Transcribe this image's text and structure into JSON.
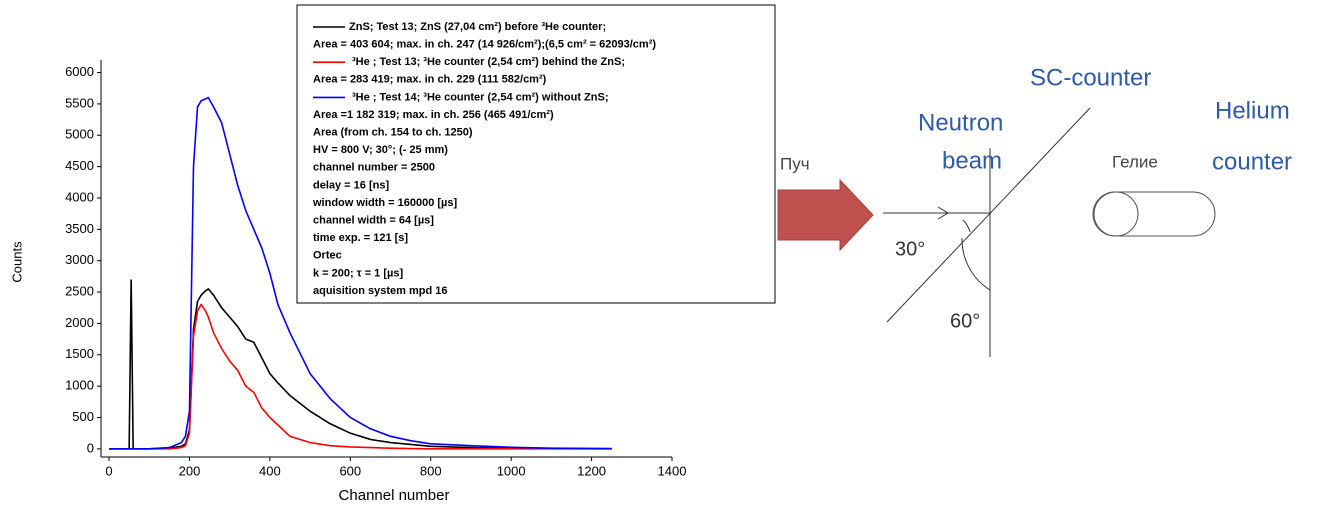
{
  "chart_data": {
    "type": "line",
    "x_label": "Channel number",
    "y_label": "Counts",
    "xlim": [
      -20,
      1400
    ],
    "ylim": [
      -130,
      6200
    ],
    "xticks": [
      0,
      200,
      400,
      600,
      800,
      1000,
      1200,
      1400
    ],
    "yticks": [
      0,
      500,
      1000,
      1500,
      2000,
      2500,
      3000,
      3500,
      4000,
      4500,
      5000,
      5500,
      6000
    ],
    "x": [
      0,
      40,
      50,
      55,
      60,
      70,
      100,
      150,
      180,
      190,
      200,
      210,
      220,
      229,
      240,
      247,
      260,
      280,
      300,
      320,
      340,
      360,
      380,
      400,
      420,
      450,
      500,
      550,
      600,
      650,
      700,
      750,
      800,
      900,
      1000,
      1100,
      1250
    ],
    "series": [
      {
        "name": "ZnS; Test 13; ZnS (27,04 cm²) before ³He counter;",
        "color": "#000000",
        "values": [
          0,
          0,
          0,
          2700,
          0,
          0,
          0,
          10,
          40,
          80,
          300,
          1900,
          2350,
          2450,
          2520,
          2550,
          2450,
          2250,
          2100,
          1950,
          1750,
          1700,
          1450,
          1200,
          1050,
          850,
          600,
          400,
          250,
          150,
          100,
          70,
          40,
          20,
          10,
          5,
          0
        ]
      },
      {
        "name": "³He ; Test 13; ³He counter (2,54 cm²) behind the ZnS;",
        "color": "#ff0000",
        "values": [
          0,
          0,
          0,
          0,
          0,
          0,
          0,
          0,
          20,
          50,
          250,
          1800,
          2200,
          2300,
          2200,
          2100,
          1850,
          1600,
          1400,
          1250,
          1000,
          900,
          650,
          500,
          380,
          200,
          100,
          50,
          30,
          20,
          10,
          5,
          0,
          0,
          0,
          0,
          0
        ]
      },
      {
        "name": "³He ; Test 14; ³He counter (2,54 cm²) without ZnS;",
        "color": "#0000ff",
        "values": [
          0,
          0,
          0,
          0,
          0,
          0,
          0,
          20,
          100,
          200,
          600,
          4500,
          5450,
          5550,
          5580,
          5600,
          5450,
          5200,
          4700,
          4200,
          3800,
          3500,
          3200,
          2800,
          2300,
          1850,
          1200,
          800,
          500,
          320,
          200,
          130,
          80,
          50,
          25,
          10,
          5
        ]
      }
    ],
    "notes": [
      "Area = 403 604; max. in ch. 247 (14 926/cm²);(6,5 cm² = 62093/cm²)",
      "Area = 283 419; max. in ch. 229 (111 582/cm²)",
      "Area =1 182 319; max. in ch. 256 (465 491/cm²)",
      "Area (from ch. 154 to ch. 1250)",
      "HV = 800 V; 30°; (- 25 mm)",
      "channel number = 2500",
      "delay = 16 [ns]",
      "window width = 160000 [µs]",
      "channel width = 64 [µs]",
      "time exp. = 121 [s]",
      "Ortec",
      "k = 200; τ = 1 [µs]",
      "aquisition system mpd 16"
    ]
  },
  "diagram": {
    "beam_ru": "Пуч",
    "beam_line1": "Neutron",
    "beam_line2": "beam",
    "sc_counter": "SC-counter",
    "helium_ru": "Гелие",
    "helium_line1": "Helium",
    "helium_line2": "counter",
    "angle1": "30°",
    "angle2": "60°"
  }
}
